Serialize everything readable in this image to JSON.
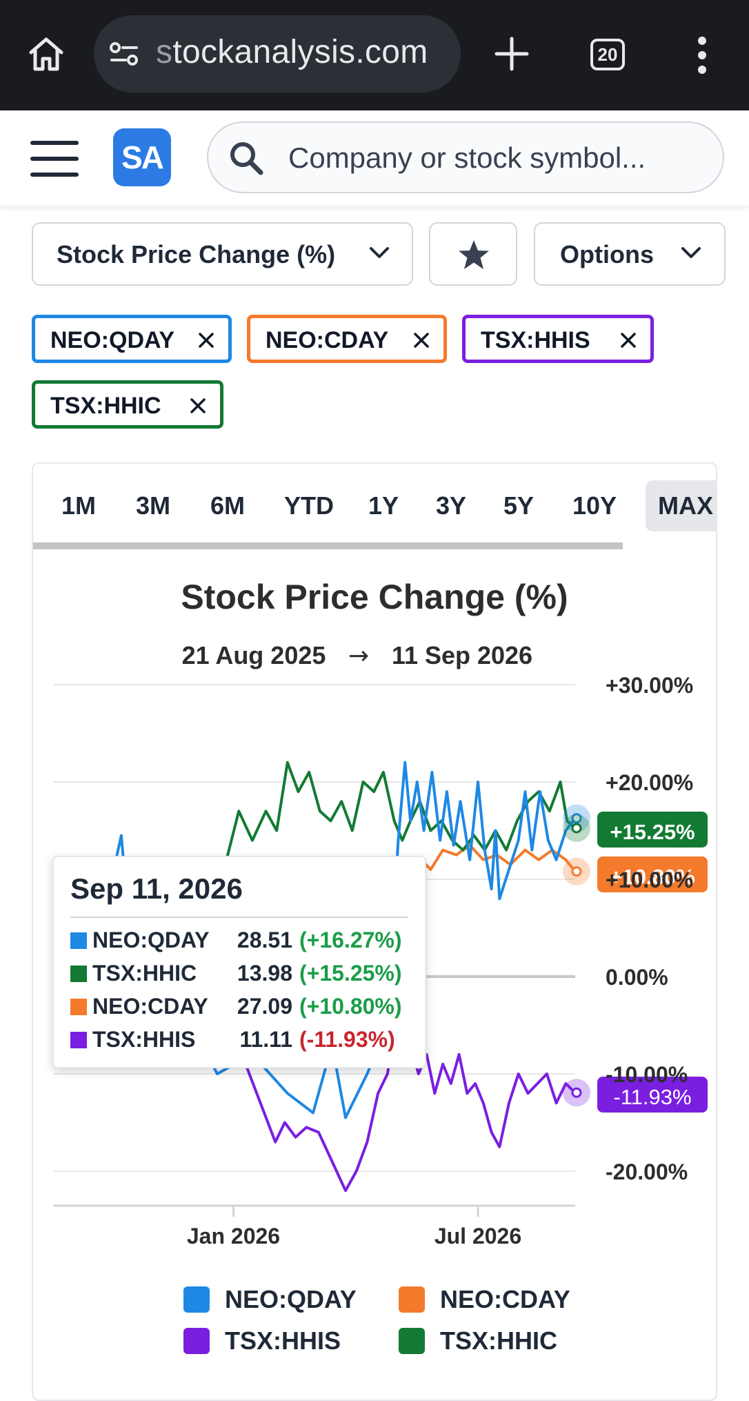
{
  "browser": {
    "url_prefix": "s",
    "url_rest": "tockanalysis.com",
    "tab_count": "20"
  },
  "header": {
    "logo_text": "SA",
    "search_placeholder": "Company or stock symbol..."
  },
  "controls": {
    "metric_label": "Stock Price Change (%)",
    "options_label": "Options"
  },
  "chips": [
    {
      "label": "NEO:QDAY",
      "color": "#1e88e5"
    },
    {
      "label": "NEO:CDAY",
      "color": "#f47a2c"
    },
    {
      "label": "TSX:HHIS",
      "color": "#7a1fe0"
    },
    {
      "label": "TSX:HHIC",
      "color": "#137a33"
    }
  ],
  "range_tabs": [
    "1M",
    "3M",
    "6M",
    "YTD",
    "1Y",
    "3Y",
    "5Y",
    "10Y",
    "MAX"
  ],
  "active_range": "MAX",
  "tooltip": {
    "date": "Sep 11, 2026",
    "rows": [
      {
        "name": "NEO:QDAY",
        "price": "28.51",
        "change": "(+16.27%)",
        "color": "#1e88e5",
        "sign": "pos"
      },
      {
        "name": "TSX:HHIC",
        "price": "13.98",
        "change": "(+15.25%)",
        "color": "#137a33",
        "sign": "pos"
      },
      {
        "name": "NEO:CDAY",
        "price": "27.09",
        "change": "(+10.80%)",
        "color": "#f47a2c",
        "sign": "pos"
      },
      {
        "name": "TSX:HHIS",
        "price": "11.11",
        "change": "(-11.93%)",
        "color": "#7a1fe0",
        "sign": "neg"
      }
    ]
  },
  "chart_data": {
    "type": "line",
    "title": "Stock Price Change (%)",
    "date_from": "21 Aug 2025",
    "date_to": "11 Sep 2026",
    "date_arrow": "→",
    "ylim": [
      -24,
      30
    ],
    "y_ticks": [
      {
        "value": 30,
        "label": "+30.00%"
      },
      {
        "value": 20,
        "label": "+20.00%"
      },
      {
        "value": 10,
        "label": "+10.00%"
      },
      {
        "value": 0,
        "label": "0.00%"
      },
      {
        "value": -10,
        "label": "-10.00%"
      },
      {
        "value": -20,
        "label": "-20.00%"
      }
    ],
    "x_range": [
      "2025-08-21",
      "2026-09-11"
    ],
    "x_ticks": [
      {
        "date": "2026-01-01",
        "label": "Jan 2026"
      },
      {
        "date": "2026-07-01",
        "label": "Jul 2026"
      }
    ],
    "grid": true,
    "legend_position": "bottom",
    "series": [
      {
        "name": "NEO:QDAY",
        "color": "#1e88e5",
        "end_label": "+16.27%",
        "points": [
          [
            "2025-08-21",
            0
          ],
          [
            "2025-09-20",
            2
          ],
          [
            "2025-10-10",
            14.5
          ],
          [
            "2025-10-14",
            8
          ],
          [
            "2025-10-18",
            12
          ],
          [
            "2025-10-25",
            6
          ],
          [
            "2025-11-10",
            5
          ],
          [
            "2025-12-01",
            -5
          ],
          [
            "2025-12-20",
            -10
          ],
          [
            "2026-01-15",
            -8
          ],
          [
            "2026-02-10",
            -12
          ],
          [
            "2026-03-01",
            -14
          ],
          [
            "2026-03-15",
            -7
          ],
          [
            "2026-03-25",
            -14.5
          ],
          [
            "2026-04-10",
            -10
          ],
          [
            "2026-04-25",
            -5
          ],
          [
            "2026-05-03",
            14
          ],
          [
            "2026-05-08",
            22
          ],
          [
            "2026-05-12",
            16
          ],
          [
            "2026-05-17",
            20
          ],
          [
            "2026-05-22",
            15
          ],
          [
            "2026-05-28",
            21
          ],
          [
            "2026-06-03",
            14
          ],
          [
            "2026-06-08",
            19
          ],
          [
            "2026-06-13",
            13.5
          ],
          [
            "2026-06-18",
            18
          ],
          [
            "2026-06-25",
            12
          ],
          [
            "2026-07-01",
            20
          ],
          [
            "2026-07-06",
            13
          ],
          [
            "2026-07-11",
            9
          ],
          [
            "2026-07-14",
            15
          ],
          [
            "2026-07-17",
            8
          ],
          [
            "2026-07-24",
            11
          ],
          [
            "2026-07-31",
            14
          ],
          [
            "2026-08-05",
            19
          ],
          [
            "2026-08-10",
            13
          ],
          [
            "2026-08-16",
            19
          ],
          [
            "2026-08-22",
            14
          ],
          [
            "2026-08-28",
            12
          ],
          [
            "2026-09-04",
            15
          ],
          [
            "2026-09-11",
            16.27
          ]
        ]
      },
      {
        "name": "NEO:CDAY",
        "color": "#f47a2c",
        "end_label": "+10.80%",
        "points": [
          [
            "2025-08-21",
            0
          ],
          [
            "2025-09-25",
            3
          ],
          [
            "2025-10-10",
            12
          ],
          [
            "2025-10-16",
            7
          ],
          [
            "2025-11-10",
            4
          ],
          [
            "2025-12-10",
            6
          ],
          [
            "2026-01-10",
            8
          ],
          [
            "2026-02-10",
            10
          ],
          [
            "2026-03-10",
            9
          ],
          [
            "2026-04-10",
            11
          ],
          [
            "2026-04-25",
            10.5
          ],
          [
            "2026-05-05",
            8.5
          ],
          [
            "2026-05-12",
            10
          ],
          [
            "2026-05-20",
            12
          ],
          [
            "2026-05-27",
            11
          ],
          [
            "2026-06-05",
            13
          ],
          [
            "2026-06-15",
            12.5
          ],
          [
            "2026-06-25",
            13.5
          ],
          [
            "2026-07-05",
            12
          ],
          [
            "2026-07-15",
            12.5
          ],
          [
            "2026-07-25",
            11.5
          ],
          [
            "2026-08-05",
            13
          ],
          [
            "2026-08-15",
            12
          ],
          [
            "2026-08-25",
            13
          ],
          [
            "2026-09-04",
            12
          ],
          [
            "2026-09-11",
            10.8
          ]
        ]
      },
      {
        "name": "TSX:HHIS",
        "color": "#7a1fe0",
        "end_label": "-11.93%",
        "points": [
          [
            "2025-08-21",
            0
          ],
          [
            "2025-10-01",
            -2
          ],
          [
            "2025-11-10",
            -5
          ],
          [
            "2025-12-10",
            -7
          ],
          [
            "2026-01-10",
            -9
          ],
          [
            "2026-02-01",
            -17
          ],
          [
            "2026-02-08",
            -15
          ],
          [
            "2026-02-16",
            -16.5
          ],
          [
            "2026-02-24",
            -15.5
          ],
          [
            "2026-03-05",
            -16
          ],
          [
            "2026-03-15",
            -19
          ],
          [
            "2026-03-25",
            -22
          ],
          [
            "2026-04-02",
            -20
          ],
          [
            "2026-04-10",
            -17
          ],
          [
            "2026-04-18",
            -12
          ],
          [
            "2026-04-25",
            -10
          ],
          [
            "2026-05-02",
            -4
          ],
          [
            "2026-05-07",
            -3
          ],
          [
            "2026-05-12",
            -7
          ],
          [
            "2026-05-18",
            -10
          ],
          [
            "2026-05-24",
            -8
          ],
          [
            "2026-05-30",
            -12
          ],
          [
            "2026-06-05",
            -9
          ],
          [
            "2026-06-11",
            -11
          ],
          [
            "2026-06-17",
            -8
          ],
          [
            "2026-06-23",
            -12
          ],
          [
            "2026-06-29",
            -11
          ],
          [
            "2026-07-05",
            -13
          ],
          [
            "2026-07-11",
            -16
          ],
          [
            "2026-07-17",
            -17.5
          ],
          [
            "2026-07-24",
            -13
          ],
          [
            "2026-07-31",
            -10
          ],
          [
            "2026-08-07",
            -12
          ],
          [
            "2026-08-14",
            -11
          ],
          [
            "2026-08-21",
            -10
          ],
          [
            "2026-08-28",
            -13
          ],
          [
            "2026-09-04",
            -11
          ],
          [
            "2026-09-11",
            -11.93
          ]
        ]
      },
      {
        "name": "TSX:HHIC",
        "color": "#137a33",
        "end_label": "+15.25%",
        "points": [
          [
            "2025-08-21",
            0
          ],
          [
            "2025-10-01",
            3
          ],
          [
            "2025-11-01",
            6
          ],
          [
            "2025-11-15",
            9
          ],
          [
            "2025-12-10",
            10
          ],
          [
            "2025-12-25",
            11
          ],
          [
            "2026-01-05",
            17
          ],
          [
            "2026-01-15",
            14
          ],
          [
            "2026-01-25",
            17
          ],
          [
            "2026-02-02",
            15
          ],
          [
            "2026-02-10",
            22
          ],
          [
            "2026-02-18",
            19
          ],
          [
            "2026-02-26",
            21
          ],
          [
            "2026-03-06",
            17
          ],
          [
            "2026-03-14",
            16
          ],
          [
            "2026-03-22",
            18
          ],
          [
            "2026-03-30",
            15
          ],
          [
            "2026-04-07",
            20
          ],
          [
            "2026-04-15",
            19
          ],
          [
            "2026-04-22",
            21
          ],
          [
            "2026-04-30",
            16
          ],
          [
            "2026-05-06",
            14
          ],
          [
            "2026-05-12",
            16
          ],
          [
            "2026-05-19",
            18
          ],
          [
            "2026-05-27",
            15
          ],
          [
            "2026-06-04",
            16
          ],
          [
            "2026-06-12",
            14
          ],
          [
            "2026-06-20",
            13
          ],
          [
            "2026-06-28",
            14.5
          ],
          [
            "2026-07-06",
            13
          ],
          [
            "2026-07-14",
            15
          ],
          [
            "2026-07-22",
            13
          ],
          [
            "2026-07-30",
            16
          ],
          [
            "2026-08-07",
            18
          ],
          [
            "2026-08-15",
            19
          ],
          [
            "2026-08-23",
            17
          ],
          [
            "2026-08-31",
            20
          ],
          [
            "2026-09-05",
            16
          ],
          [
            "2026-09-11",
            15.25
          ]
        ]
      }
    ]
  }
}
